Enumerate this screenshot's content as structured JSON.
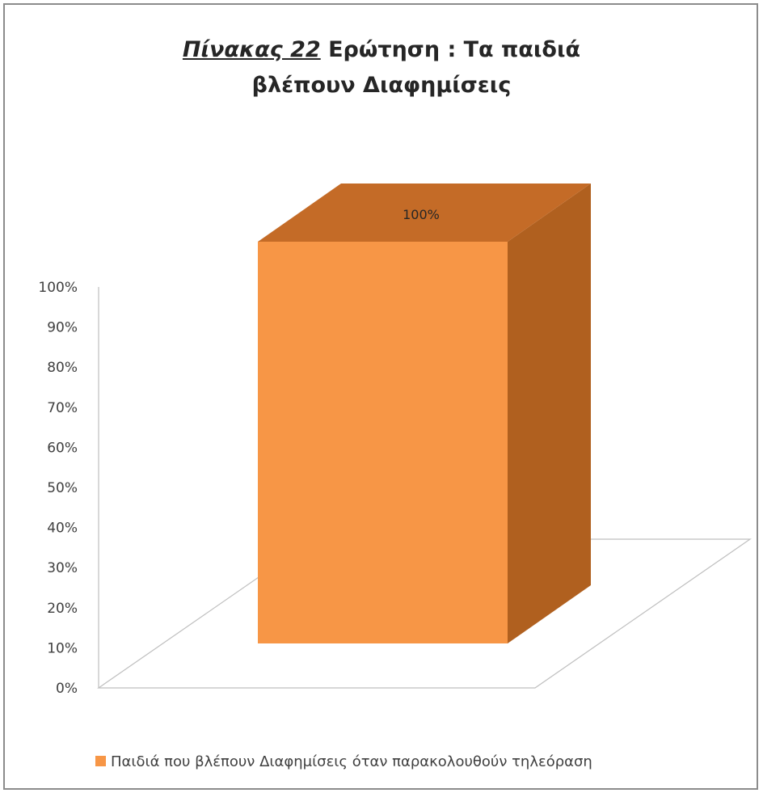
{
  "chart_data": {
    "type": "bar",
    "title_part1": "Πίνακας 22",
    "title_part2": " Ερώτηση : Τα παιδιά",
    "title_line2": "βλέπουν Διαφημίσεις",
    "categories": [
      ""
    ],
    "series": [
      {
        "name": "Παιδιά που βλέπουν Διαφημίσεις όταν παρακολουθούν τηλεόραση",
        "values": [
          1.0
        ],
        "data_labels": [
          "100%"
        ]
      }
    ],
    "y_ticks": [
      "0%",
      "10%",
      "20%",
      "30%",
      "40%",
      "50%",
      "60%",
      "70%",
      "80%",
      "90%",
      "100%"
    ],
    "ylim": [
      0,
      1
    ],
    "three_d": true,
    "legend_position": "bottom",
    "colors": {
      "bar_front": "#f79646",
      "bar_top": "#c46b27",
      "bar_side": "#b0601f",
      "axis": "#bfbfbf"
    }
  }
}
